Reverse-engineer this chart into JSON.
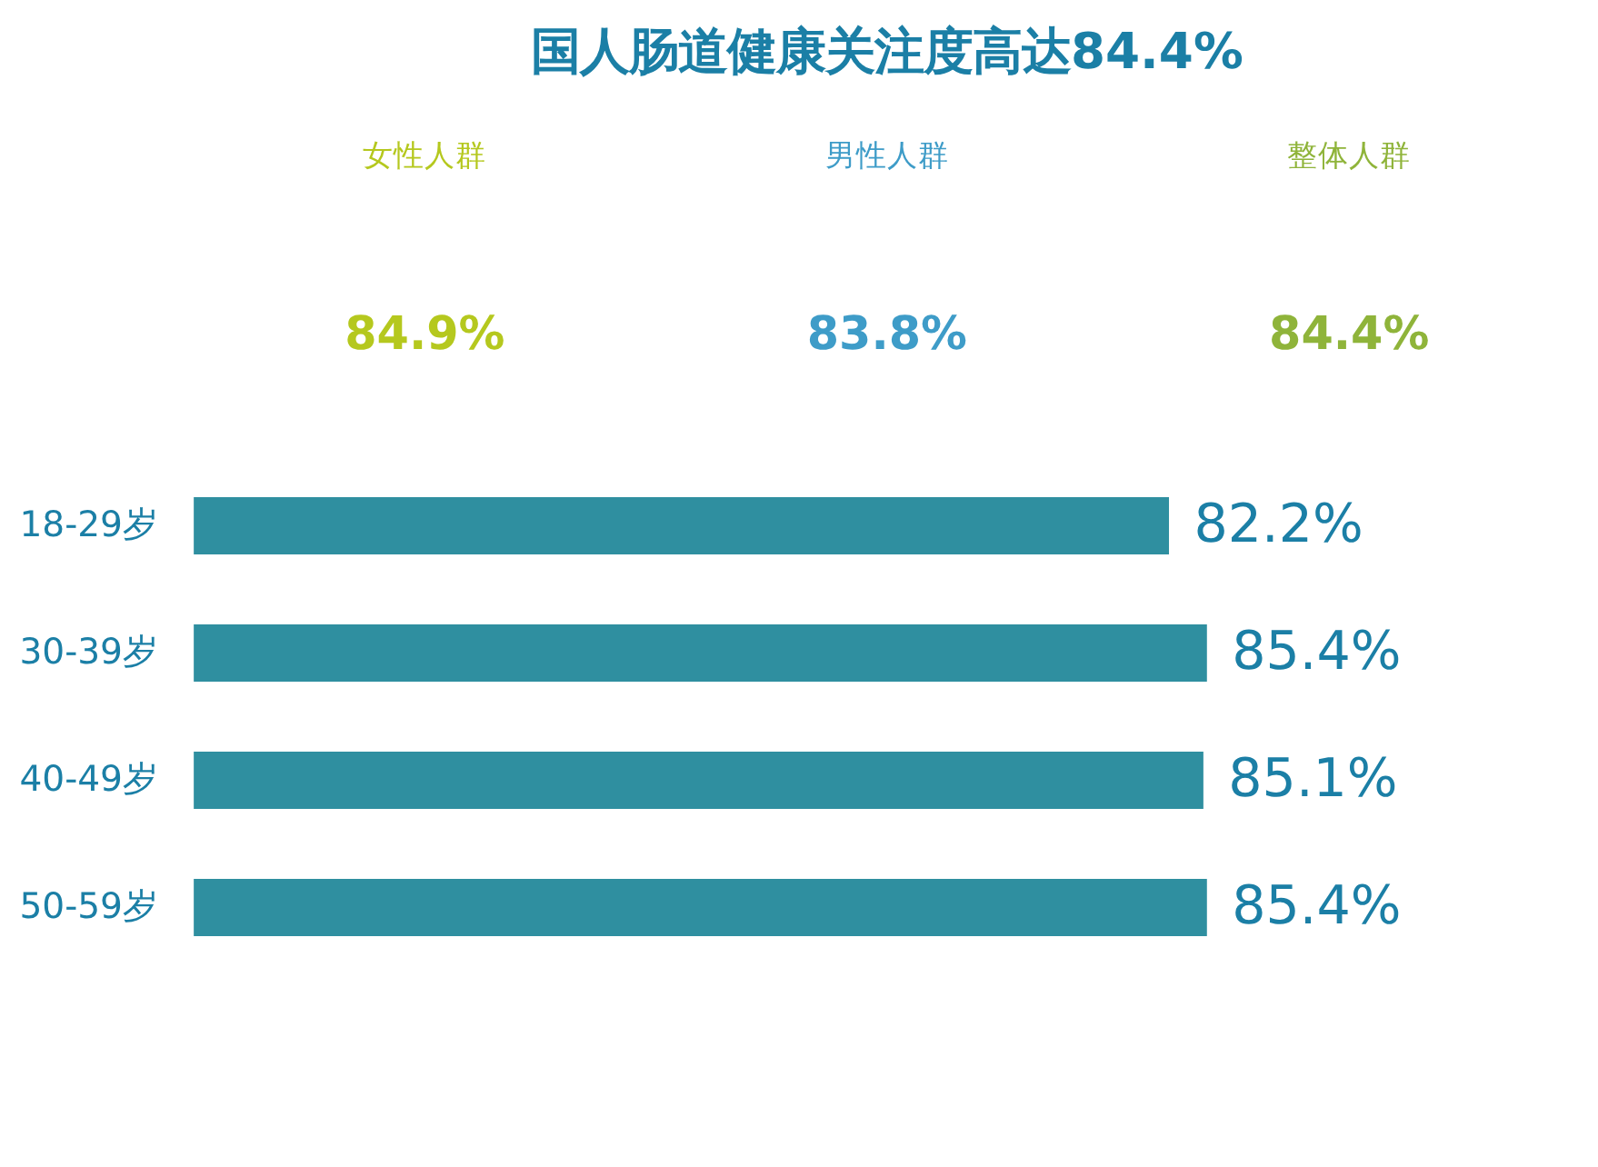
{
  "chart_data": [
    {
      "type": "other",
      "title": "国人肠道健康关注度高达84.4%",
      "categories": [
        "女性人群",
        "男性人群",
        "整体人群"
      ],
      "values": [
        84.9,
        83.8,
        84.4
      ],
      "value_labels": [
        "84.9%",
        "83.8%",
        "84.4%"
      ],
      "colors": [
        "#b5c81e",
        "#3e9cc8",
        "#8fb43a"
      ]
    },
    {
      "type": "bar",
      "orientation": "horizontal",
      "categories": [
        "18-29岁",
        "30-39岁",
        "40-49岁",
        "50-59岁"
      ],
      "values": [
        82.2,
        85.4,
        85.1,
        85.4
      ],
      "value_labels": [
        "82.2%",
        "85.4%",
        "85.1%",
        "85.4%"
      ],
      "color": "#2f8fa0",
      "tick_labels": "y"
    }
  ]
}
